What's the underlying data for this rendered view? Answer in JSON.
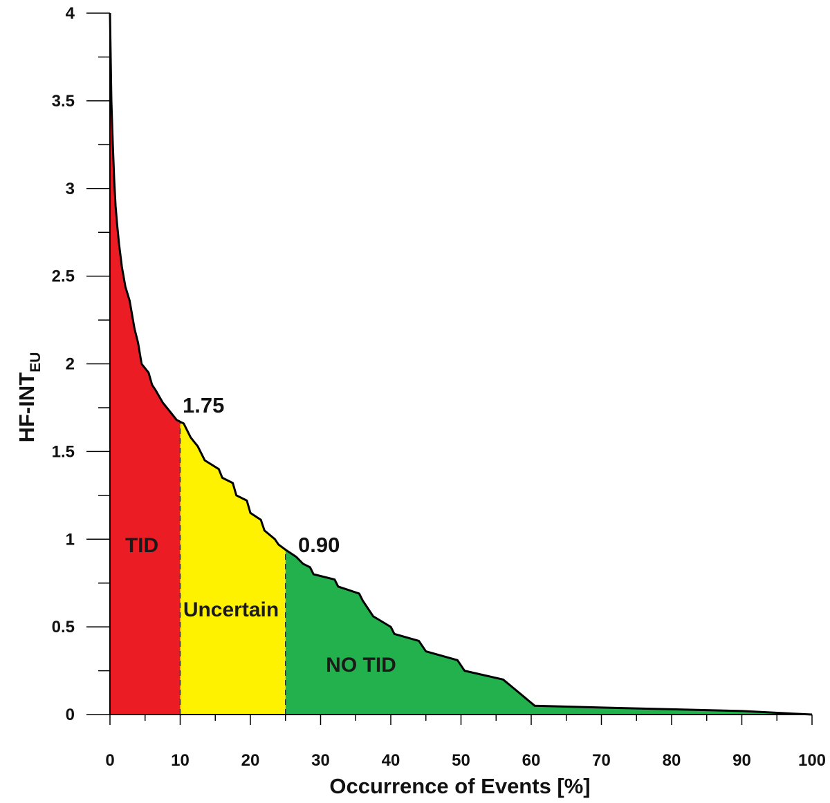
{
  "chart_data": {
    "type": "area",
    "title": "",
    "xlabel": "Occurrence of Events [%]",
    "ylabel_main": "HF-INT",
    "ylabel_subscript": "EU",
    "xlim": [
      0,
      100
    ],
    "ylim": [
      0,
      4
    ],
    "x_ticks": [
      0,
      10,
      20,
      30,
      40,
      50,
      60,
      70,
      80,
      90,
      100
    ],
    "y_ticks": [
      0,
      0.5,
      1,
      1.5,
      2,
      2.5,
      3,
      3.5,
      4
    ],
    "x_tick_labels": [
      "0",
      "10",
      "20",
      "30",
      "40",
      "50",
      "60",
      "70",
      "80",
      "90",
      "100"
    ],
    "y_tick_labels": [
      "0",
      "0.5",
      "1",
      "1.5",
      "2",
      "2.5",
      "3",
      "3.5",
      "4"
    ],
    "grid": false,
    "legend": "none",
    "series": [
      {
        "x": [
          0,
          0.1,
          0.2,
          0.4,
          0.6,
          0.8,
          1.0,
          1.3,
          1.7,
          2.2,
          2.8,
          3.5,
          4.0,
          4.5,
          5.5,
          6.0,
          6.5,
          7.5,
          8.5,
          9.5,
          10.5,
          11.5,
          12.5,
          13.5,
          15.5,
          16.0,
          17.5,
          18.0,
          19.5,
          20.0,
          21.5,
          22.0,
          23.5,
          24.0,
          25.0,
          26.5,
          27.5,
          28.5,
          29.0,
          32.0,
          32.5,
          35.5,
          36.0,
          37.5,
          40.0,
          40.5,
          44.0,
          45.0,
          49.5,
          50.5,
          56.0,
          57.5,
          60.5,
          70,
          80,
          90,
          100
        ],
        "y": [
          4.0,
          3.75,
          3.5,
          3.25,
          3.05,
          2.9,
          2.8,
          2.68,
          2.55,
          2.44,
          2.36,
          2.2,
          2.12,
          2.0,
          1.95,
          1.88,
          1.85,
          1.78,
          1.73,
          1.68,
          1.66,
          1.58,
          1.53,
          1.45,
          1.4,
          1.35,
          1.32,
          1.25,
          1.22,
          1.15,
          1.11,
          1.05,
          1.0,
          0.97,
          0.94,
          0.9,
          0.86,
          0.84,
          0.8,
          0.77,
          0.73,
          0.69,
          0.65,
          0.56,
          0.5,
          0.46,
          0.42,
          0.36,
          0.31,
          0.25,
          0.2,
          0.15,
          0.05,
          0.04,
          0.03,
          0.02,
          0.0
        ]
      }
    ],
    "regions": [
      {
        "label": "TID",
        "x_from": 0,
        "x_to": 10,
        "color": "#ec1c24"
      },
      {
        "label": "Uncertain",
        "x_from": 10,
        "x_to": 25,
        "color": "#fff200"
      },
      {
        "label": "NO TID",
        "x_from": 25,
        "x_to": 100,
        "color": "#22b14c"
      }
    ],
    "thresholds": [
      {
        "x": 10,
        "y": 1.75,
        "label": "1.75"
      },
      {
        "x": 25,
        "y": 0.9,
        "label": "0.90"
      }
    ]
  }
}
